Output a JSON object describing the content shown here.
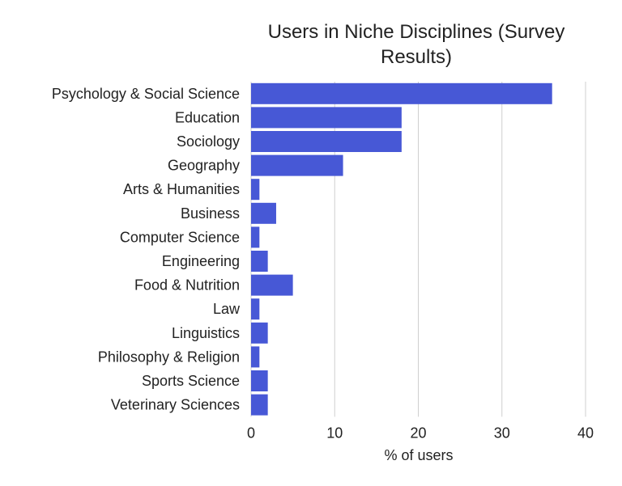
{
  "chart_data": {
    "type": "bar",
    "orientation": "horizontal",
    "title": "Users in Niche Disciplines (Survey Results)",
    "title_lines": [
      "Users in Niche Disciplines (Survey",
      "Results)"
    ],
    "xlabel": "% of users",
    "ylabel": "",
    "xlim": [
      0,
      40
    ],
    "xticks": [
      0,
      10,
      20,
      30,
      40
    ],
    "grid": true,
    "bar_color": "#4758d6",
    "categories": [
      "Psychology & Social Science",
      "Education",
      "Sociology",
      "Geography",
      "Arts & Humanities",
      "Business",
      "Computer Science",
      "Engineering",
      "Food & Nutrition",
      "Law",
      "Linguistics",
      "Philosophy & Religion",
      "Sports Science",
      "Veterinary Sciences"
    ],
    "values": [
      36,
      18,
      18,
      11,
      1,
      3,
      1,
      2,
      5,
      1,
      2,
      1,
      2,
      2
    ]
  }
}
